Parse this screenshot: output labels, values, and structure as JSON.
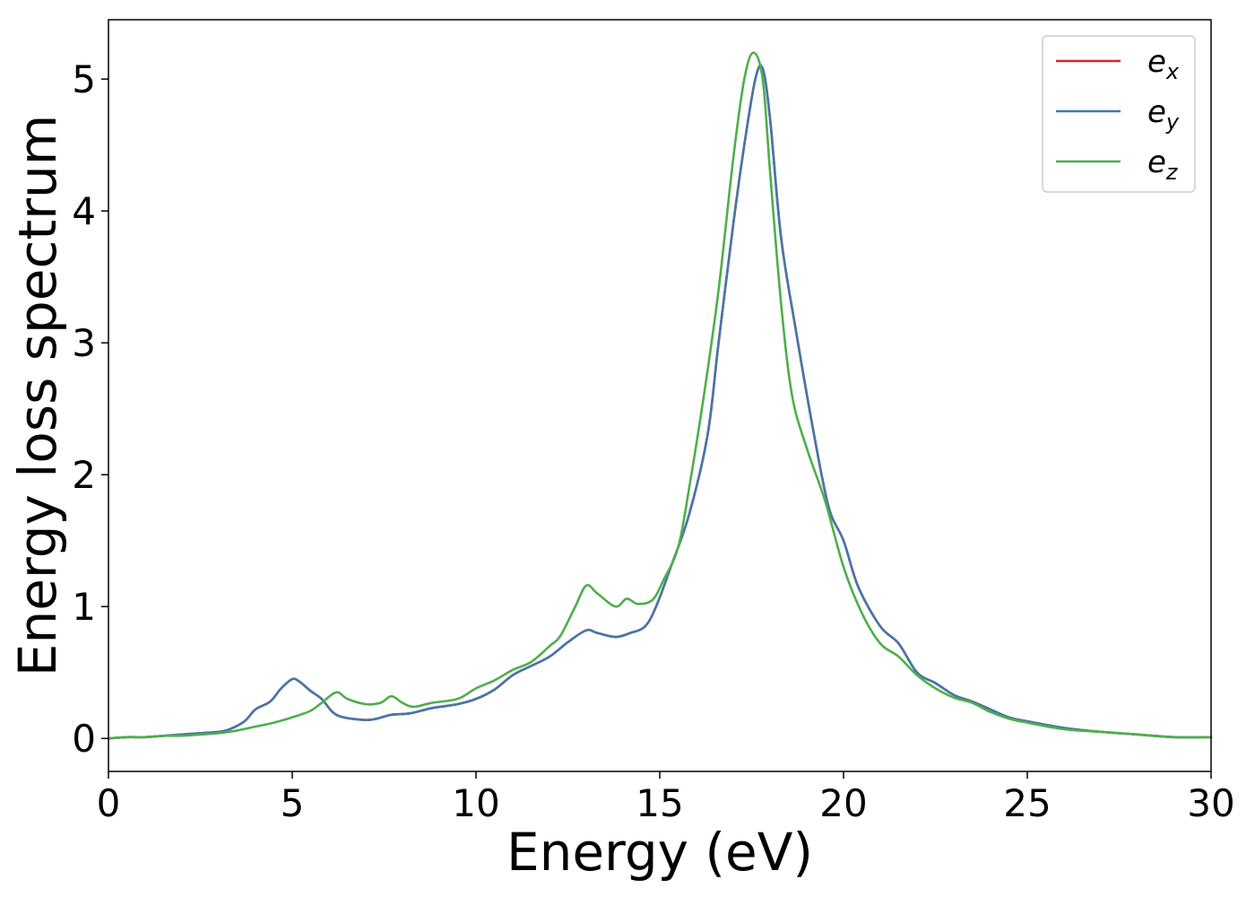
{
  "chart_data": {
    "type": "line",
    "xlabel": "Energy (eV)",
    "ylabel": "Energy loss spectrum",
    "xlim": [
      0,
      30
    ],
    "ylim": [
      -0.25,
      5.45
    ],
    "xticks": [
      0,
      5,
      10,
      15,
      20,
      25,
      30
    ],
    "xtick_labels": [
      "0",
      "5",
      "10",
      "15",
      "20",
      "25",
      "30"
    ],
    "yticks": [
      0,
      1,
      2,
      3,
      4,
      5
    ],
    "ytick_labels": [
      "0",
      "1",
      "2",
      "3",
      "4",
      "5"
    ],
    "grid": false,
    "legend_position": "top-right",
    "series": [
      {
        "name": "e_x",
        "legend_base": "e",
        "legend_sub": "x",
        "color": "#d62728",
        "x": [
          0,
          0.5,
          1,
          1.5,
          2,
          2.5,
          3,
          3.3,
          3.7,
          4.0,
          4.4,
          4.7,
          5.0,
          5.2,
          5.5,
          5.8,
          6.1,
          6.4,
          7.0,
          7.3,
          7.7,
          8.2,
          8.8,
          9.5,
          10.0,
          10.5,
          11.0,
          11.5,
          12.0,
          12.5,
          13.0,
          13.3,
          13.8,
          14.2,
          14.6,
          14.9,
          15.3,
          15.8,
          16.3,
          16.6,
          17.0,
          17.3,
          17.6,
          17.8,
          18.0,
          18.3,
          18.7,
          19.2,
          19.6,
          20.0,
          20.4,
          21.0,
          21.5,
          22.0,
          22.5,
          23.0,
          23.5,
          24.0,
          24.5,
          25.0,
          26.0,
          27.0,
          28.0,
          29.0,
          30.0
        ],
        "values": [
          0.0,
          0.01,
          0.01,
          0.02,
          0.03,
          0.04,
          0.05,
          0.07,
          0.13,
          0.22,
          0.28,
          0.38,
          0.45,
          0.43,
          0.36,
          0.3,
          0.2,
          0.16,
          0.14,
          0.15,
          0.18,
          0.19,
          0.23,
          0.26,
          0.3,
          0.37,
          0.48,
          0.55,
          0.62,
          0.73,
          0.82,
          0.8,
          0.77,
          0.8,
          0.85,
          1.0,
          1.3,
          1.7,
          2.3,
          3.0,
          3.9,
          4.5,
          5.0,
          5.08,
          4.7,
          3.8,
          3.1,
          2.3,
          1.75,
          1.5,
          1.15,
          0.85,
          0.72,
          0.5,
          0.42,
          0.33,
          0.28,
          0.22,
          0.16,
          0.13,
          0.08,
          0.05,
          0.03,
          0.01,
          0.01
        ]
      },
      {
        "name": "e_y",
        "legend_base": "e",
        "legend_sub": "y",
        "color": "#4477aa",
        "x": [
          0,
          0.5,
          1,
          1.5,
          2,
          2.5,
          3,
          3.3,
          3.7,
          4.0,
          4.4,
          4.7,
          5.0,
          5.2,
          5.5,
          5.8,
          6.1,
          6.4,
          7.0,
          7.3,
          7.7,
          8.2,
          8.8,
          9.5,
          10.0,
          10.5,
          11.0,
          11.5,
          12.0,
          12.5,
          13.0,
          13.3,
          13.8,
          14.2,
          14.6,
          14.9,
          15.3,
          15.8,
          16.3,
          16.6,
          17.0,
          17.3,
          17.6,
          17.8,
          18.0,
          18.3,
          18.7,
          19.2,
          19.6,
          20.0,
          20.4,
          21.0,
          21.5,
          22.0,
          22.5,
          23.0,
          23.5,
          24.0,
          24.5,
          25.0,
          26.0,
          27.0,
          28.0,
          29.0,
          30.0
        ],
        "values": [
          0.0,
          0.01,
          0.01,
          0.02,
          0.03,
          0.04,
          0.05,
          0.07,
          0.13,
          0.22,
          0.28,
          0.38,
          0.45,
          0.43,
          0.36,
          0.3,
          0.2,
          0.16,
          0.14,
          0.15,
          0.18,
          0.19,
          0.23,
          0.26,
          0.3,
          0.37,
          0.48,
          0.55,
          0.62,
          0.73,
          0.82,
          0.8,
          0.77,
          0.8,
          0.85,
          1.0,
          1.3,
          1.7,
          2.3,
          3.0,
          3.9,
          4.5,
          5.0,
          5.08,
          4.7,
          3.8,
          3.1,
          2.3,
          1.75,
          1.5,
          1.15,
          0.85,
          0.72,
          0.5,
          0.42,
          0.33,
          0.28,
          0.22,
          0.16,
          0.13,
          0.08,
          0.05,
          0.03,
          0.01,
          0.01
        ]
      },
      {
        "name": "e_z",
        "legend_base": "e",
        "legend_sub": "z",
        "color": "#4daf4a",
        "x": [
          0,
          0.5,
          1,
          1.5,
          2,
          2.5,
          3,
          3.5,
          4.0,
          4.5,
          5.0,
          5.5,
          5.8,
          6.2,
          6.5,
          7.0,
          7.4,
          7.7,
          8.0,
          8.3,
          8.8,
          9.5,
          10.0,
          10.5,
          11.0,
          11.5,
          12.0,
          12.3,
          12.7,
          13.0,
          13.3,
          13.8,
          14.1,
          14.4,
          14.8,
          15.1,
          15.5,
          15.8,
          16.2,
          16.6,
          17.0,
          17.3,
          17.55,
          17.8,
          18.0,
          18.3,
          18.6,
          19.0,
          19.5,
          20.0,
          20.5,
          21.0,
          21.5,
          22.0,
          22.5,
          23.0,
          23.5,
          24.0,
          24.5,
          25.0,
          26.0,
          27.0,
          28.0,
          29.0,
          30.0
        ],
        "values": [
          0.0,
          0.01,
          0.01,
          0.02,
          0.02,
          0.03,
          0.04,
          0.06,
          0.09,
          0.12,
          0.16,
          0.21,
          0.27,
          0.35,
          0.3,
          0.26,
          0.27,
          0.32,
          0.27,
          0.24,
          0.27,
          0.3,
          0.38,
          0.44,
          0.52,
          0.58,
          0.7,
          0.78,
          1.0,
          1.16,
          1.1,
          1.0,
          1.06,
          1.02,
          1.05,
          1.2,
          1.45,
          1.9,
          2.6,
          3.4,
          4.4,
          5.0,
          5.2,
          5.0,
          4.3,
          3.3,
          2.6,
          2.2,
          1.8,
          1.3,
          0.95,
          0.72,
          0.62,
          0.48,
          0.38,
          0.31,
          0.27,
          0.2,
          0.15,
          0.12,
          0.07,
          0.05,
          0.03,
          0.01,
          0.01
        ]
      }
    ]
  }
}
